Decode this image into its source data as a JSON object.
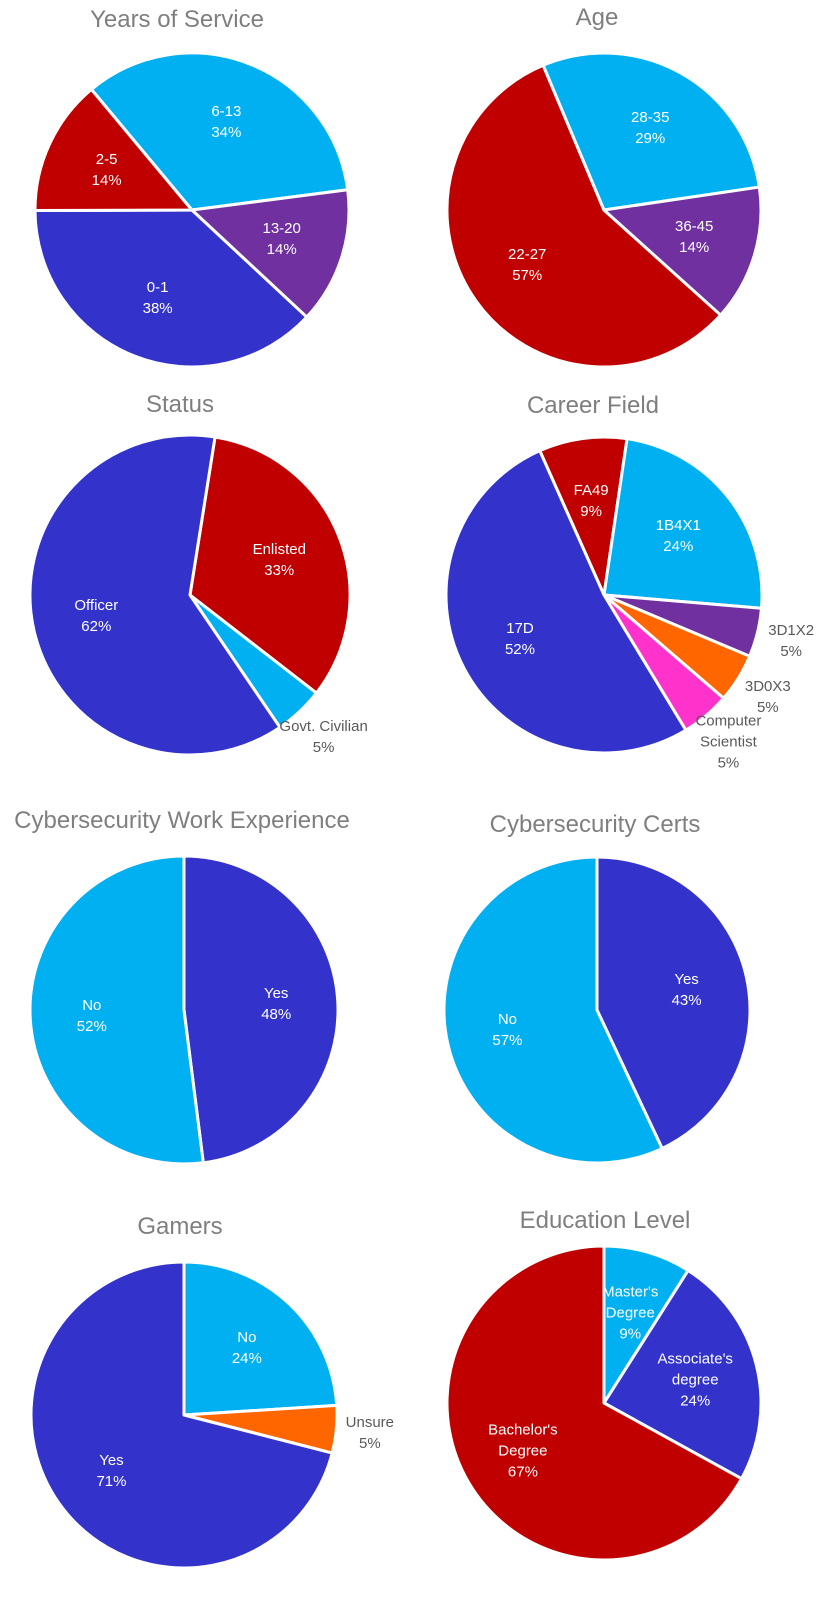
{
  "chart_data": [
    {
      "type": "pie",
      "title": "Years of Service",
      "start_angle": 133,
      "categories": [
        "0-1",
        "2-5",
        "6-13",
        "13-20"
      ],
      "values": [
        38,
        14,
        34,
        14
      ],
      "value_labels": [
        "38%",
        "14%",
        "34%",
        "14%"
      ],
      "colors": [
        "#3333cc",
        "#c00000",
        "#00b0f0",
        "#7030a0"
      ]
    },
    {
      "type": "pie",
      "title": "Age",
      "start_angle": 132,
      "categories": [
        "22-27",
        "28-35",
        "36-45"
      ],
      "values": [
        57,
        29,
        14
      ],
      "value_labels": [
        "57%",
        "29%",
        "14%"
      ],
      "colors": [
        "#c00000",
        "#00b0f0",
        "#7030a0"
      ]
    },
    {
      "type": "pie",
      "title": "Status",
      "start_angle": 9,
      "categories": [
        "Enlisted",
        "Govt. Civilian",
        "Officer"
      ],
      "values": [
        33,
        5,
        62
      ],
      "value_labels": [
        "33%",
        "5%",
        "62%"
      ],
      "colors": [
        "#c00000",
        "#00b0f0",
        "#3333cc"
      ]
    },
    {
      "type": "pie",
      "title": "Career Field",
      "start_angle": 336,
      "categories": [
        "FA49",
        "1B4X1",
        "3D1X2",
        "3D0X3",
        "Computer Scientist",
        "17D"
      ],
      "values": [
        9,
        24,
        5,
        5,
        5,
        52
      ],
      "value_labels": [
        "9%",
        "24%",
        "5%",
        "5%",
        "5%",
        "52%"
      ],
      "colors": [
        "#c00000",
        "#00b0f0",
        "#7030a0",
        "#ff6600",
        "#ff33cc",
        "#3333cc"
      ]
    },
    {
      "type": "pie",
      "title": "Cybersecurity Work Experience",
      "start_angle": 0,
      "categories": [
        "Yes",
        "No"
      ],
      "values": [
        48,
        52
      ],
      "value_labels": [
        "48%",
        "52%"
      ],
      "colors": [
        "#3333cc",
        "#00b0f0"
      ]
    },
    {
      "type": "pie",
      "title": "Cybersecurity Certs",
      "start_angle": 0,
      "categories": [
        "Yes",
        "No"
      ],
      "values": [
        43,
        57
      ],
      "value_labels": [
        "43%",
        "57%"
      ],
      "colors": [
        "#3333cc",
        "#00b0f0"
      ]
    },
    {
      "type": "pie",
      "title": "Gamers",
      "start_angle": 0,
      "categories": [
        "No",
        "Unsure",
        "Yes"
      ],
      "values": [
        24,
        5,
        71
      ],
      "value_labels": [
        "24%",
        "5%",
        "71%"
      ],
      "colors": [
        "#00b0f0",
        "#ff6600",
        "#3333cc"
      ]
    },
    {
      "type": "pie",
      "title": "Education Level",
      "start_angle": 0,
      "categories": [
        "Master's Degree",
        "Associate's degree",
        "Bachelor's Degree"
      ],
      "values": [
        9,
        24,
        67
      ],
      "value_labels": [
        "9%",
        "24%",
        "67%"
      ],
      "colors": [
        "#00b0f0",
        "#3333cc",
        "#c00000"
      ]
    }
  ]
}
